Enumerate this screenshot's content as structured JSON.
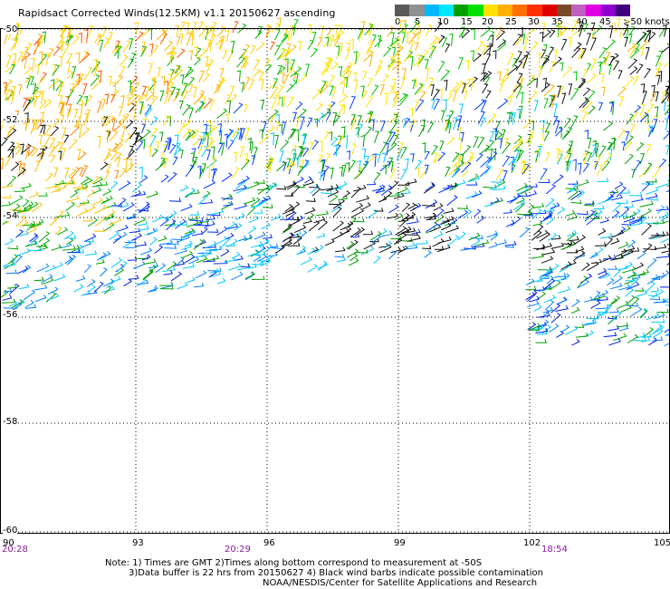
{
  "title": "Rapidsact Corrected Winds(12.5KM) v1.1 20150627 ascending",
  "legend": {
    "colors": [
      "#5a5a5a",
      "#909090",
      "#00b8ff",
      "#00e8ff",
      "#00a000",
      "#00e000",
      "#ffe000",
      "#ffb000",
      "#ff7000",
      "#ff3000",
      "#e00000",
      "#7a4a28",
      "#c060c0",
      "#e000e0",
      "#9000d0",
      "#400080"
    ],
    "labels": [
      "0",
      "5",
      "10",
      "15",
      "20",
      "25",
      "30",
      "35",
      "40",
      "45",
      ">50 knots"
    ]
  },
  "axes": {
    "lat_labels": [
      "-50",
      "-52",
      "-54",
      "-56",
      "-58",
      "-60"
    ],
    "lon_labels": [
      "90",
      "93",
      "96",
      "99",
      "102",
      "105"
    ],
    "times": [
      "20:28",
      "20:29",
      "18:54"
    ]
  },
  "note": {
    "line1": "Note: 1) Times are GMT 2)Times along bottom correspond to measurement at -50S",
    "line2": "3)Data buffer is 22 hrs from 20150627 4) Black wind barbs indicate possible contamination",
    "line3": "NOAA/NESDIS/Center for Satellite Applications and Research"
  }
}
